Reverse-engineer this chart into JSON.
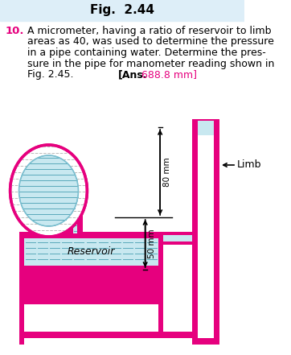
{
  "title": "Fig.  2.44",
  "problem_number": "10.",
  "problem_text": "A micrometer, having a ratio of reservoir to limb\nareas as 40, was used to determine the pressure\nin a pipe containing water. Determine the pres-\nsure in the pipe for manometer reading shown in\nFig. 2.45.",
  "ans_label": "[Ans.",
  "ans_value": "688.8 mm]",
  "title_bg": "#ddeef8",
  "magenta": "#e6007e",
  "water_color": "#c8e8f0",
  "label_50": "50 mm",
  "label_80": "80 mm",
  "label_reservoir": "Reservoir",
  "label_limb": "Limb",
  "bg": "#ffffff"
}
